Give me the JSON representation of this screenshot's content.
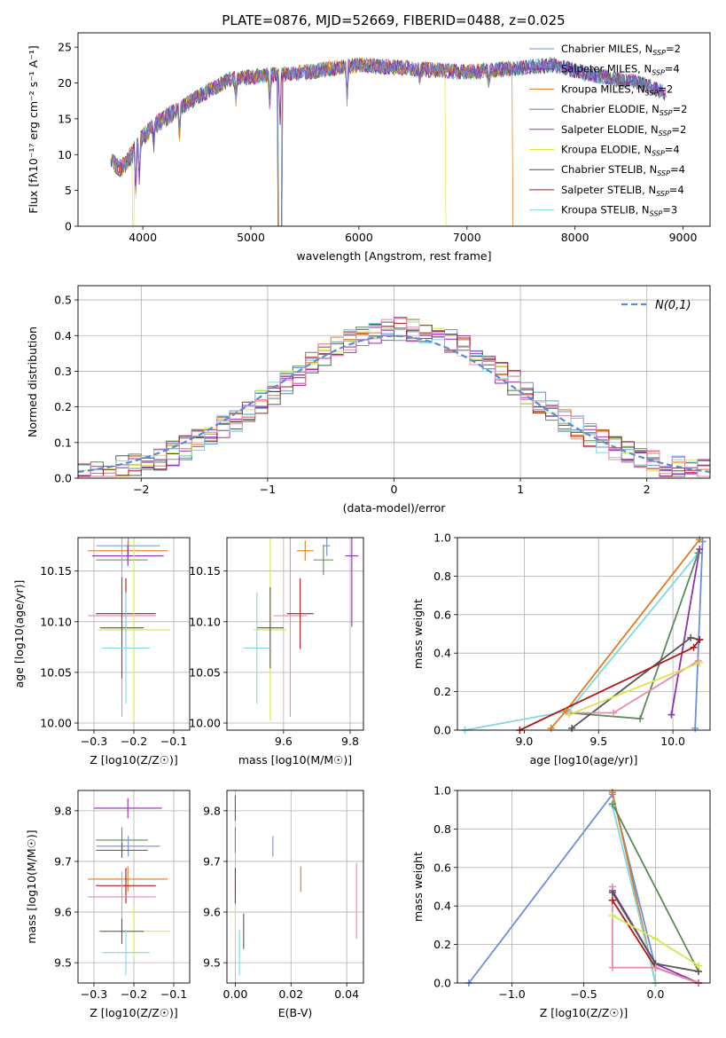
{
  "figure_title": "PLATE=0876, MJD=52669, FIBERID=0488, z=0.025",
  "colors": {
    "Chabrier MILES": "#6b8fd8",
    "Salpeter MILES": "#8e2eb0",
    "Kroupa MILES": "#e07b1f",
    "Chabrier ELODIE": "#5a8a5a",
    "Salpeter ELODIE": "#a631b8",
    "Kroupa ELODIE": "#d7e64a",
    "Chabrier STELIB": "#555555",
    "Salpeter STELIB": "#b01818",
    "Kroupa STELIB": "#7fd8e0",
    "Salpeter STELIB pink": "#e68ab0",
    "gauss": "#5b8ad8"
  },
  "chart_data": [
    {
      "id": "spectrum",
      "type": "line",
      "title": "PLATE=0876, MJD=52669, FIBERID=0488, z=0.025",
      "xlabel": "wavelength [Angstrom, rest frame]",
      "ylabel": "Flux [fλ10⁻¹⁷ erg cm⁻² s⁻¹ A⁻¹]",
      "xlim": [
        3400,
        9250
      ],
      "ylim": [
        0,
        27
      ],
      "xticks": [
        4000,
        5000,
        6000,
        7000,
        8000,
        9000
      ],
      "yticks": [
        0,
        5,
        10,
        15,
        20,
        25
      ],
      "legend": [
        {
          "name": "Chabrier MILES",
          "sub": "=2",
          "color": "#6b8fd8"
        },
        {
          "name": "Salpeter MILES",
          "sub": "=4",
          "color": "#8e2eb0"
        },
        {
          "name": "Kroupa MILES",
          "sub": "=2",
          "color": "#e07b1f"
        },
        {
          "name": "Chabrier ELODIE",
          "sub": "=2",
          "color": "#5a8a5a"
        },
        {
          "name": "Salpeter ELODIE",
          "sub": "=2",
          "color": "#a631b8"
        },
        {
          "name": "Kroupa ELODIE",
          "sub": "=4",
          "color": "#d7e64a"
        },
        {
          "name": "Chabrier STELIB",
          "sub": "=4",
          "color": "#555555"
        },
        {
          "name": "Salpeter STELIB",
          "sub": "=4",
          "color": "#b01818"
        },
        {
          "name": "Kroupa STELIB",
          "sub": "=3",
          "color": "#7fd8e0"
        }
      ],
      "legend_placement": "top-right",
      "continuum": [
        [
          3700,
          9
        ],
        [
          3800,
          8
        ],
        [
          3900,
          10
        ],
        [
          4000,
          12.5
        ],
        [
          4100,
          14
        ],
        [
          4300,
          16
        ],
        [
          4500,
          18
        ],
        [
          4800,
          20.5
        ],
        [
          5100,
          21
        ],
        [
          5500,
          21.5
        ],
        [
          6000,
          22.5
        ],
        [
          6500,
          22
        ],
        [
          7000,
          21.5
        ],
        [
          7400,
          22
        ],
        [
          7800,
          22.5
        ],
        [
          8200,
          21
        ],
        [
          8600,
          20
        ],
        [
          8850,
          18.5
        ]
      ],
      "cutoffs": {
        "Kroupa ELODIE": 6800,
        "Kroupa MILES": 7420
      }
    },
    {
      "id": "residual-hist",
      "type": "step",
      "xlabel": "(data-model)/error",
      "ylabel": "Normed distribution",
      "xlim": [
        -2.5,
        2.5
      ],
      "ylim": [
        0,
        0.54
      ],
      "xticks": [
        -2,
        -1,
        0,
        1,
        2
      ],
      "yticks": [
        0.0,
        0.1,
        0.2,
        0.3,
        0.4,
        0.5
      ],
      "legend": [
        {
          "name": "N(0,1)",
          "color": "#5b8ad8",
          "dashed": true
        }
      ],
      "legend_placement": "top-right",
      "grid": true,
      "bin_width": 0.1
    },
    {
      "id": "age-vs-Z",
      "type": "errorbar",
      "xlabel": "Z [log10(Z/Z☉)]",
      "ylabel": "age  [log10(age/yr)]",
      "xlim": [
        -0.34,
        -0.06
      ],
      "ylim": [
        9.993,
        10.183
      ],
      "xticks": [
        -0.3,
        -0.2,
        -0.1
      ],
      "yticks": [
        10.0,
        10.05,
        10.1,
        10.15
      ],
      "points": [
        {
          "c": "#6b8fd8",
          "x": -0.214,
          "xe": 0.08,
          "y": 10.175,
          "ye": 0.01
        },
        {
          "c": "#e07b1f",
          "x": -0.215,
          "xe": 0.1,
          "y": 10.17,
          "ye": 0.01
        },
        {
          "c": "#8e2eb0",
          "x": -0.215,
          "xe": 0.09,
          "y": 10.165,
          "ye": 0.01
        },
        {
          "c": "#5a8a5a",
          "x": -0.23,
          "xe": 0.065,
          "y": 10.161,
          "ye": 0.008
        },
        {
          "c": "#e68ab0",
          "x": -0.23,
          "xe": 0.085,
          "y": 10.106,
          "ye": 0.1
        },
        {
          "c": "#b01818",
          "x": -0.22,
          "xe": 0.075,
          "y": 10.108,
          "ye": 0.035
        },
        {
          "c": "#d7e64a",
          "x": -0.2,
          "xe": 0.09,
          "y": 10.092,
          "ye": 0.09
        },
        {
          "c": "#555555",
          "x": -0.23,
          "xe": 0.055,
          "y": 10.094,
          "ye": 0.05
        },
        {
          "c": "#7fd8e0",
          "x": -0.22,
          "xe": 0.06,
          "y": 10.074,
          "ye": 0.055
        }
      ]
    },
    {
      "id": "age-vs-mass",
      "type": "errorbar",
      "xlabel": "mass [log10(M/M☉)]",
      "xlim": [
        9.43,
        9.84
      ],
      "ylim": [
        9.993,
        10.183
      ],
      "xticks": [
        9.6,
        9.8
      ],
      "yticks": [
        10.0,
        10.05,
        10.1,
        10.15
      ],
      "points": [
        {
          "c": "#6b8fd8",
          "x": 9.73,
          "xe": 0.01,
          "y": 10.175,
          "ye": 0.01
        },
        {
          "c": "#e07b1f",
          "x": 9.665,
          "xe": 0.025,
          "y": 10.17,
          "ye": 0.01
        },
        {
          "c": "#8e2eb0",
          "x": 9.805,
          "xe": 0.02,
          "y": 10.165,
          "ye": 0.07
        },
        {
          "c": "#5a8a5a",
          "x": 9.72,
          "xe": 0.03,
          "y": 10.161,
          "ye": 0.015
        },
        {
          "c": "#e68ab0",
          "x": 9.62,
          "xe": 0.05,
          "y": 10.106,
          "ye": 0.1
        },
        {
          "c": "#b01818",
          "x": 9.65,
          "xe": 0.04,
          "y": 10.108,
          "ye": 0.035
        },
        {
          "c": "#d7e64a",
          "x": 9.56,
          "xe": 0.05,
          "y": 10.092,
          "ye": 0.09
        },
        {
          "c": "#555555",
          "x": 9.56,
          "xe": 0.04,
          "y": 10.094,
          "ye": 0.04
        },
        {
          "c": "#7fd8e0",
          "x": 9.52,
          "xe": 0.04,
          "y": 10.074,
          "ye": 0.055
        }
      ]
    },
    {
      "id": "weight-vs-age",
      "type": "line",
      "xlabel": "age  [log10(age/yr)]",
      "ylabel": "mass weight",
      "xlim": [
        8.55,
        10.25
      ],
      "ylim": [
        0,
        1.0
      ],
      "xticks": [
        9.0,
        9.5,
        10.0
      ],
      "yticks": [
        0.0,
        0.2,
        0.4,
        0.6,
        0.8,
        1.0
      ],
      "series": [
        {
          "c": "#7fd8e0",
          "pts": [
            [
              8.6,
              0.0
            ],
            [
              9.3,
              0.1
            ],
            [
              10.17,
              0.92
            ]
          ]
        },
        {
          "c": "#e07b1f",
          "pts": [
            [
              9.18,
              0.01
            ],
            [
              9.28,
              0.1
            ],
            [
              10.18,
              0.99
            ]
          ]
        },
        {
          "c": "#5a8a5a",
          "pts": [
            [
              9.3,
              0.09
            ],
            [
              9.78,
              0.06
            ],
            [
              10.17,
              0.92
            ]
          ]
        },
        {
          "c": "#8e2eb0",
          "pts": [
            [
              9.99,
              0.08
            ],
            [
              10.18,
              0.94
            ]
          ]
        },
        {
          "c": "#6b8fd8",
          "pts": [
            [
              10.15,
              0.01
            ],
            [
              10.2,
              0.98
            ]
          ]
        },
        {
          "c": "#555555",
          "pts": [
            [
              9.32,
              0.01
            ],
            [
              10.12,
              0.48
            ],
            [
              10.18,
              0.47
            ]
          ]
        },
        {
          "c": "#b01818",
          "pts": [
            [
              8.97,
              0.0
            ],
            [
              10.14,
              0.43
            ],
            [
              10.18,
              0.47
            ]
          ]
        },
        {
          "c": "#e68ab0",
          "pts": [
            [
              9.3,
              0.09
            ],
            [
              9.6,
              0.09
            ],
            [
              10.17,
              0.36
            ]
          ]
        },
        {
          "c": "#d7e64a",
          "pts": [
            [
              9.3,
              0.08
            ],
            [
              10.18,
              0.35
            ]
          ]
        }
      ]
    },
    {
      "id": "mass-vs-Z",
      "type": "errorbar",
      "xlabel": "Z [log10(Z/Z☉)]",
      "ylabel": "mass [log10(M/M☉)]",
      "xlim": [
        -0.34,
        -0.06
      ],
      "ylim": [
        9.46,
        9.84
      ],
      "xticks": [
        -0.3,
        -0.2,
        -0.1
      ],
      "yticks": [
        9.5,
        9.6,
        9.7,
        9.8
      ],
      "points": [
        {
          "c": "#8e2eb0",
          "x": -0.215,
          "xe": 0.085,
          "y": 9.805,
          "ye": 0.02
        },
        {
          "c": "#5a8a5a",
          "x": -0.23,
          "xe": 0.065,
          "y": 9.742,
          "ye": 0.025
        },
        {
          "c": "#6b8fd8",
          "x": -0.214,
          "xe": 0.08,
          "y": 9.73,
          "ye": 0.02
        },
        {
          "c": "#555555",
          "x": -0.23,
          "xe": 0.065,
          "y": 9.722,
          "ye": 0.015
        },
        {
          "c": "#e07b1f",
          "x": -0.215,
          "xe": 0.1,
          "y": 9.665,
          "ye": 0.025
        },
        {
          "c": "#b01818",
          "x": -0.22,
          "xe": 0.075,
          "y": 9.652,
          "ye": 0.035
        },
        {
          "c": "#e68ab0",
          "x": -0.23,
          "xe": 0.085,
          "y": 9.63,
          "ye": 0.05
        },
        {
          "c": "#d7e64a",
          "x": -0.2,
          "xe": 0.09,
          "y": 9.562,
          "ye": 0.05
        },
        {
          "c": "#555555",
          "x": -0.23,
          "xe": 0.055,
          "y": 9.562,
          "ye": 0.025
        },
        {
          "c": "#7fd8e0",
          "x": -0.22,
          "xe": 0.06,
          "y": 9.52,
          "ye": 0.045
        }
      ]
    },
    {
      "id": "mass-vs-ebv",
      "type": "errorbar",
      "xlabel": "E(B-V)",
      "xlim": [
        -0.003,
        0.046
      ],
      "ylim": [
        9.46,
        9.84
      ],
      "xticks": [
        0.0,
        0.02,
        0.04
      ],
      "yticks": [
        9.5,
        9.6,
        9.7,
        9.8
      ],
      "points": [
        {
          "c": "#8e2eb0",
          "x": 0.0,
          "xe": 0.0,
          "y": 9.805,
          "ye": 0.025
        },
        {
          "c": "#5a8a5a",
          "x": 0.0,
          "xe": 0.0,
          "y": 9.742,
          "ye": 0.025
        },
        {
          "c": "#6b8fd8",
          "x": 0.0135,
          "xe": 0.0,
          "y": 9.73,
          "ye": 0.02
        },
        {
          "c": "#e07b1f",
          "x": 0.0235,
          "xe": 0.0,
          "y": 9.665,
          "ye": 0.025
        },
        {
          "c": "#b01818",
          "x": 0.0,
          "xe": 0.0,
          "y": 9.652,
          "ye": 0.035
        },
        {
          "c": "#e68ab0",
          "x": 0.0435,
          "xe": 0.0,
          "y": 9.622,
          "ye": 0.075
        },
        {
          "c": "#555555",
          "x": 0.003,
          "xe": 0.0,
          "y": 9.562,
          "ye": 0.035
        },
        {
          "c": "#d7e64a",
          "x": 0.0,
          "xe": 0.0,
          "y": 9.562,
          "ye": 0.05
        },
        {
          "c": "#7fd8e0",
          "x": 0.0015,
          "xe": 0.0,
          "y": 9.52,
          "ye": 0.045
        }
      ]
    },
    {
      "id": "weight-vs-Z",
      "type": "line",
      "xlabel": "Z [log10(Z/Z☉)]",
      "ylabel": "mass weight",
      "xlim": [
        -1.38,
        0.38
      ],
      "ylim": [
        0,
        1.0
      ],
      "xticks": [
        -1.0,
        -0.5,
        0.0
      ],
      "yticks": [
        0.0,
        0.2,
        0.4,
        0.6,
        0.8,
        1.0
      ],
      "series": [
        {
          "c": "#6b8fd8",
          "pts": [
            [
              -1.3,
              0.0
            ],
            [
              -0.3,
              0.98
            ],
            [
              0.0,
              0.08
            ],
            [
              0.3,
              0.0
            ]
          ]
        },
        {
          "c": "#e07b1f",
          "pts": [
            [
              -0.3,
              0.99
            ],
            [
              0.0,
              0.0
            ],
            [
              0.3,
              0.0
            ]
          ]
        },
        {
          "c": "#7fd8e0",
          "pts": [
            [
              -0.3,
              0.92
            ],
            [
              0.0,
              0.0
            ]
          ]
        },
        {
          "c": "#5a8a5a",
          "pts": [
            [
              -0.3,
              0.93
            ],
            [
              0.3,
              0.06
            ]
          ]
        },
        {
          "c": "#8e2eb0",
          "pts": [
            [
              -0.3,
              0.48
            ],
            [
              0.0,
              0.1
            ],
            [
              0.3,
              0.0
            ]
          ]
        },
        {
          "c": "#555555",
          "pts": [
            [
              -0.3,
              0.47
            ],
            [
              0.0,
              0.1
            ],
            [
              0.3,
              0.06
            ]
          ]
        },
        {
          "c": "#b01818",
          "pts": [
            [
              -0.3,
              0.43
            ],
            [
              0.0,
              0.08
            ],
            [
              0.3,
              0.0
            ]
          ]
        },
        {
          "c": "#d7e64a",
          "pts": [
            [
              -0.3,
              0.35
            ],
            [
              0.0,
              0.23
            ],
            [
              0.3,
              0.09
            ]
          ]
        },
        {
          "c": "#e68ab0",
          "pts": [
            [
              -0.3,
              0.5
            ],
            [
              -0.3,
              0.08
            ],
            [
              0.0,
              0.08
            ],
            [
              0.3,
              0.0
            ]
          ]
        }
      ]
    }
  ]
}
